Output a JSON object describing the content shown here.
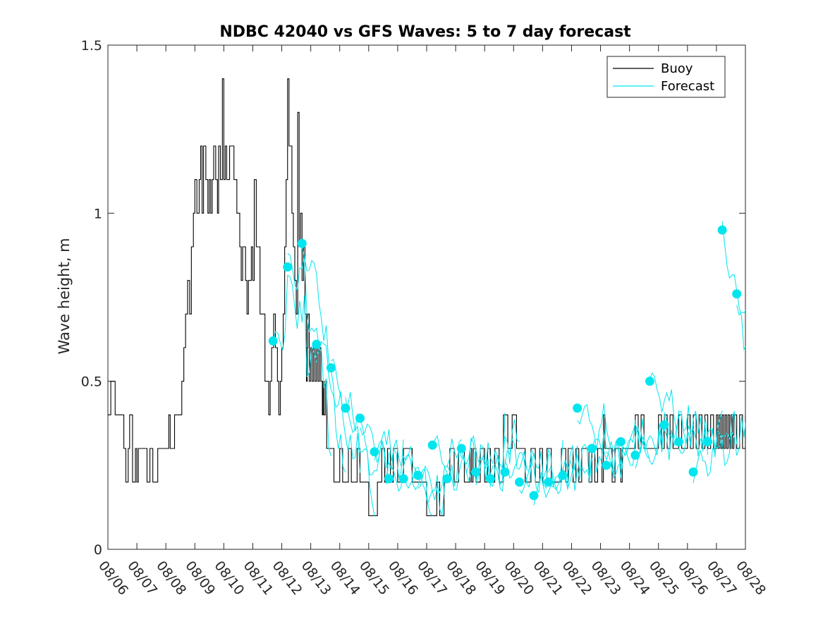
{
  "chart_data": {
    "type": "line",
    "title": "NDBC 42040 vs GFS Waves: 5 to 7 day forecast",
    "xlabel": "",
    "ylabel": "Wave height, m",
    "xlim": [
      0,
      22
    ],
    "ylim": [
      0,
      1.5
    ],
    "x_unit": "days since 08/06",
    "yticks": [
      {
        "value": 0,
        "label": "0"
      },
      {
        "value": 0.5,
        "label": "0.5"
      },
      {
        "value": 1,
        "label": "1"
      },
      {
        "value": 1.5,
        "label": "1.5"
      }
    ],
    "xticks": [
      {
        "value": 0,
        "label": "08/06"
      },
      {
        "value": 1,
        "label": "08/07"
      },
      {
        "value": 2,
        "label": "08/08"
      },
      {
        "value": 3,
        "label": "08/09"
      },
      {
        "value": 4,
        "label": "08/10"
      },
      {
        "value": 5,
        "label": "08/11"
      },
      {
        "value": 6,
        "label": "08/12"
      },
      {
        "value": 7,
        "label": "08/13"
      },
      {
        "value": 8,
        "label": "08/14"
      },
      {
        "value": 9,
        "label": "08/15"
      },
      {
        "value": 10,
        "label": "08/16"
      },
      {
        "value": 11,
        "label": "08/17"
      },
      {
        "value": 12,
        "label": "08/18"
      },
      {
        "value": 13,
        "label": "08/19"
      },
      {
        "value": 14,
        "label": "08/20"
      },
      {
        "value": 15,
        "label": "08/21"
      },
      {
        "value": 16,
        "label": "08/22"
      },
      {
        "value": 17,
        "label": "08/23"
      },
      {
        "value": 18,
        "label": "08/24"
      },
      {
        "value": 19,
        "label": "08/25"
      },
      {
        "value": 20,
        "label": "08/26"
      },
      {
        "value": 21,
        "label": "08/27"
      },
      {
        "value": 22,
        "label": "08/28"
      }
    ],
    "legend": {
      "position": "top-right",
      "entries": [
        {
          "label": "Buoy",
          "color": "#000000"
        },
        {
          "label": "Forecast",
          "color": "#00e5ee"
        }
      ]
    },
    "series": [
      {
        "name": "Buoy",
        "color": "#000000",
        "style": "step",
        "x": [
          0.0,
          0.1,
          0.25,
          0.55,
          0.62,
          0.7,
          0.75,
          0.85,
          0.95,
          1.0,
          1.05,
          1.12,
          1.2,
          1.35,
          1.45,
          1.55,
          1.72,
          1.9,
          2.1,
          2.15,
          2.3,
          2.45,
          2.55,
          2.62,
          2.68,
          2.75,
          2.82,
          2.88,
          2.95,
          3.0,
          3.07,
          3.15,
          3.2,
          3.25,
          3.3,
          3.38,
          3.45,
          3.5,
          3.55,
          3.6,
          3.65,
          3.72,
          3.78,
          3.82,
          3.88,
          3.95,
          4.0,
          4.05,
          4.1,
          4.2,
          4.35,
          4.45,
          4.55,
          4.6,
          4.65,
          4.75,
          4.8,
          4.85,
          4.95,
          5.0,
          5.05,
          5.12,
          5.25,
          5.42,
          5.55,
          5.6,
          5.65,
          5.72,
          5.78,
          5.85,
          5.9,
          5.95,
          6.0,
          6.05,
          6.1,
          6.15,
          6.2,
          6.25,
          6.35,
          6.4,
          6.45,
          6.5,
          6.55,
          6.6,
          6.65,
          6.7,
          6.75,
          6.8,
          6.85,
          6.88,
          6.9,
          6.95,
          7.0,
          7.05,
          7.1,
          7.15,
          7.2,
          7.25,
          7.3,
          7.35,
          7.4,
          7.42,
          7.45,
          7.5,
          7.55,
          7.6,
          7.65,
          7.7,
          7.75,
          7.8,
          7.9,
          8.0,
          8.1,
          8.2,
          8.3,
          8.4,
          8.5,
          8.6,
          8.7,
          8.8,
          8.9,
          9.0,
          9.15,
          9.3,
          9.45,
          9.55,
          9.65,
          9.75,
          9.85,
          10.0,
          10.2,
          10.5,
          10.8,
          11.0,
          11.2,
          11.35,
          11.45,
          11.6,
          11.8,
          11.95,
          12.1,
          12.3,
          12.5,
          12.55,
          12.6,
          12.7,
          12.85,
          13.0,
          13.1,
          13.2,
          13.35,
          13.5,
          13.65,
          13.8,
          13.95,
          14.1,
          14.25,
          14.4,
          14.5,
          14.6,
          14.75,
          14.9,
          15.0,
          15.15,
          15.3,
          15.5,
          15.65,
          15.8,
          15.88,
          15.95,
          16.05,
          16.15,
          16.25,
          16.35,
          16.5,
          16.6,
          16.7,
          16.8,
          16.9,
          17.0,
          17.05,
          17.1,
          17.15,
          17.2,
          17.3,
          17.4,
          17.5,
          17.6,
          17.65,
          17.7,
          17.75,
          17.8,
          17.9,
          18.0,
          18.1,
          18.2,
          18.3,
          18.4,
          18.5,
          18.6,
          18.7,
          18.8,
          18.9,
          19.0,
          19.1,
          19.2,
          19.3,
          19.4,
          19.5,
          19.6,
          19.7,
          19.8,
          19.9,
          20.0,
          20.1,
          20.2,
          20.3,
          20.4,
          20.5,
          20.6,
          20.7,
          20.8,
          20.9,
          21.0,
          21.05,
          21.1,
          21.15,
          21.2,
          21.25,
          21.3,
          21.35,
          21.4,
          21.45,
          21.5,
          21.55,
          21.6,
          21.7,
          21.8,
          21.9,
          22.0
        ],
        "y": [
          0.4,
          0.5,
          0.4,
          0.3,
          0.2,
          0.3,
          0.4,
          0.2,
          0.3,
          0.2,
          0.3,
          0.3,
          0.3,
          0.2,
          0.3,
          0.2,
          0.3,
          0.3,
          0.4,
          0.3,
          0.4,
          0.4,
          0.5,
          0.6,
          0.7,
          0.8,
          0.7,
          0.9,
          1.0,
          1.1,
          1.0,
          1.1,
          1.2,
          1.0,
          1.2,
          1.1,
          1.0,
          1.1,
          1.0,
          1.1,
          1.2,
          1.1,
          1.0,
          1.2,
          1.1,
          1.4,
          1.1,
          1.2,
          1.1,
          1.2,
          1.1,
          1.0,
          0.9,
          0.8,
          0.9,
          0.8,
          0.7,
          0.8,
          0.9,
          0.8,
          1.1,
          0.9,
          0.7,
          0.5,
          0.4,
          0.5,
          0.6,
          0.7,
          0.6,
          0.5,
          0.4,
          0.5,
          0.6,
          0.7,
          0.9,
          1.1,
          1.4,
          1.2,
          1.0,
          0.9,
          0.8,
          0.7,
          1.3,
          0.9,
          1.0,
          0.8,
          0.9,
          0.7,
          0.5,
          0.6,
          0.7,
          0.5,
          0.6,
          0.5,
          0.6,
          0.5,
          0.6,
          0.5,
          0.6,
          0.5,
          0.4,
          0.5,
          0.4,
          0.5,
          0.3,
          0.3,
          0.3,
          0.3,
          0.3,
          0.2,
          0.2,
          0.3,
          0.2,
          0.2,
          0.3,
          0.2,
          0.2,
          0.3,
          0.2,
          0.2,
          0.2,
          0.1,
          0.1,
          0.2,
          0.3,
          0.2,
          0.3,
          0.2,
          0.3,
          0.2,
          0.3,
          0.2,
          0.2,
          0.1,
          0.1,
          0.2,
          0.1,
          0.2,
          0.3,
          0.2,
          0.3,
          0.2,
          0.3,
          0.2,
          0.3,
          0.2,
          0.3,
          0.2,
          0.3,
          0.2,
          0.3,
          0.2,
          0.4,
          0.3,
          0.4,
          0.3,
          0.3,
          0.2,
          0.2,
          0.3,
          0.2,
          0.3,
          0.2,
          0.3,
          0.2,
          0.2,
          0.3,
          0.2,
          0.3,
          0.3,
          0.2,
          0.3,
          0.2,
          0.3,
          0.3,
          0.2,
          0.3,
          0.2,
          0.3,
          0.3,
          0.2,
          0.4,
          0.3,
          0.3,
          0.3,
          0.2,
          0.3,
          0.3,
          0.3,
          0.2,
          0.3,
          0.3,
          0.3,
          0.3,
          0.3,
          0.4,
          0.3,
          0.4,
          0.3,
          0.3,
          0.3,
          0.3,
          0.3,
          0.4,
          0.3,
          0.4,
          0.3,
          0.4,
          0.3,
          0.3,
          0.4,
          0.3,
          0.3,
          0.4,
          0.3,
          0.4,
          0.3,
          0.4,
          0.3,
          0.4,
          0.3,
          0.4,
          0.3,
          0.4,
          0.3,
          0.4,
          0.3,
          0.4,
          0.3,
          0.4,
          0.3,
          0.4,
          0.3,
          0.4,
          0.3,
          0.4,
          0.3,
          0.4,
          0.3,
          0.4
        ]
      },
      {
        "name": "Forecast",
        "color": "#00e5ee",
        "style": "lines-with-markers",
        "marker_x": [
          5.7,
          6.2,
          6.7,
          7.2,
          7.7,
          8.2,
          8.7,
          9.2,
          9.7,
          10.2,
          10.7,
          11.2,
          11.7,
          12.2,
          12.7,
          13.2,
          13.7,
          14.2,
          14.7,
          15.2,
          15.7,
          16.2,
          16.7,
          17.2,
          17.7,
          18.2,
          18.7,
          19.2,
          19.7,
          20.2,
          20.7,
          21.2,
          21.7
        ],
        "marker_y": [
          0.62,
          0.84,
          0.91,
          0.61,
          0.54,
          0.42,
          0.39,
          0.29,
          0.21,
          0.21,
          0.22,
          0.31,
          0.21,
          0.3,
          0.23,
          0.21,
          0.23,
          0.2,
          0.16,
          0.2,
          0.22,
          0.42,
          0.3,
          0.25,
          0.32,
          0.28,
          0.5,
          0.37,
          0.32,
          0.23,
          0.32,
          0.95,
          0.76
        ]
      }
    ]
  }
}
